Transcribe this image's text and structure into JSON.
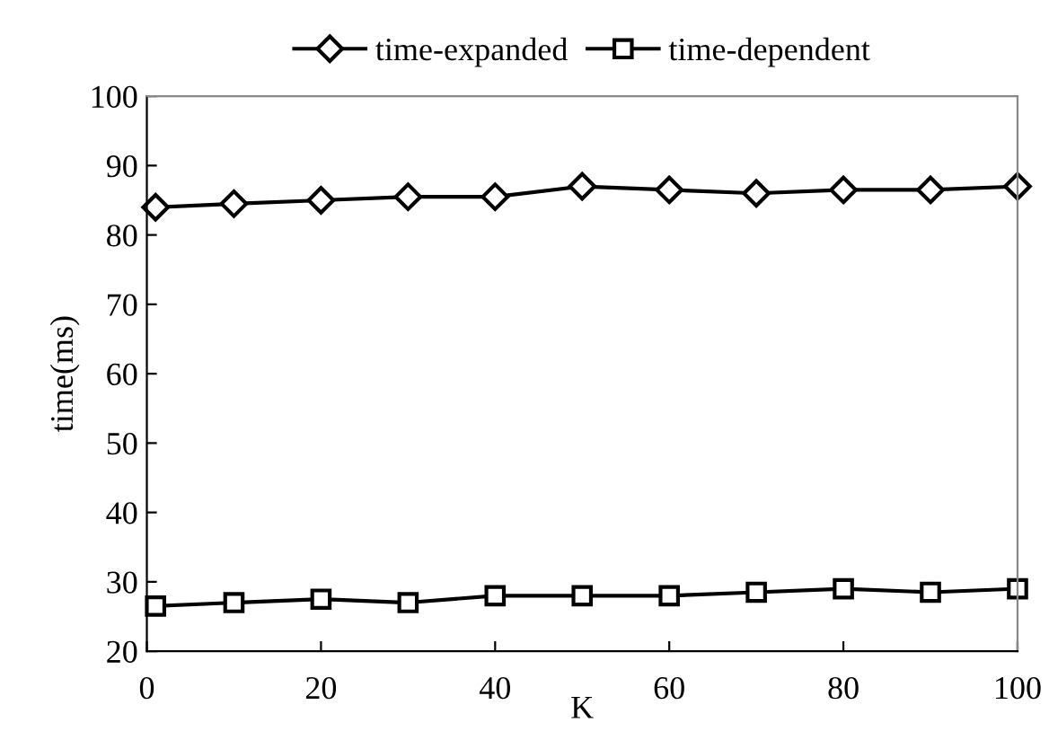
{
  "chart_data": {
    "type": "line",
    "xlabel": "K",
    "ylabel": "time(ms)",
    "x": [
      1,
      10,
      20,
      30,
      40,
      50,
      60,
      70,
      80,
      90,
      100
    ],
    "series": [
      {
        "name": "time-expanded",
        "color": "#000000",
        "marker": "diamond",
        "values": [
          84,
          84.5,
          85,
          85.5,
          85.5,
          87,
          86.5,
          86,
          86.5,
          86.5,
          87
        ]
      },
      {
        "name": "time-dependent",
        "color": "#000000",
        "marker": "square",
        "values": [
          26.5,
          27,
          27.5,
          27,
          28,
          28,
          28,
          28.5,
          29,
          28.5,
          29
        ]
      }
    ],
    "xlim": [
      0,
      100
    ],
    "xticks": [
      0,
      20,
      40,
      60,
      80,
      100
    ],
    "ylim": [
      20,
      100
    ],
    "yticks": [
      20,
      30,
      40,
      50,
      60,
      70,
      80,
      90,
      100
    ],
    "grid": false,
    "legend": "top",
    "line_style": "solid"
  }
}
